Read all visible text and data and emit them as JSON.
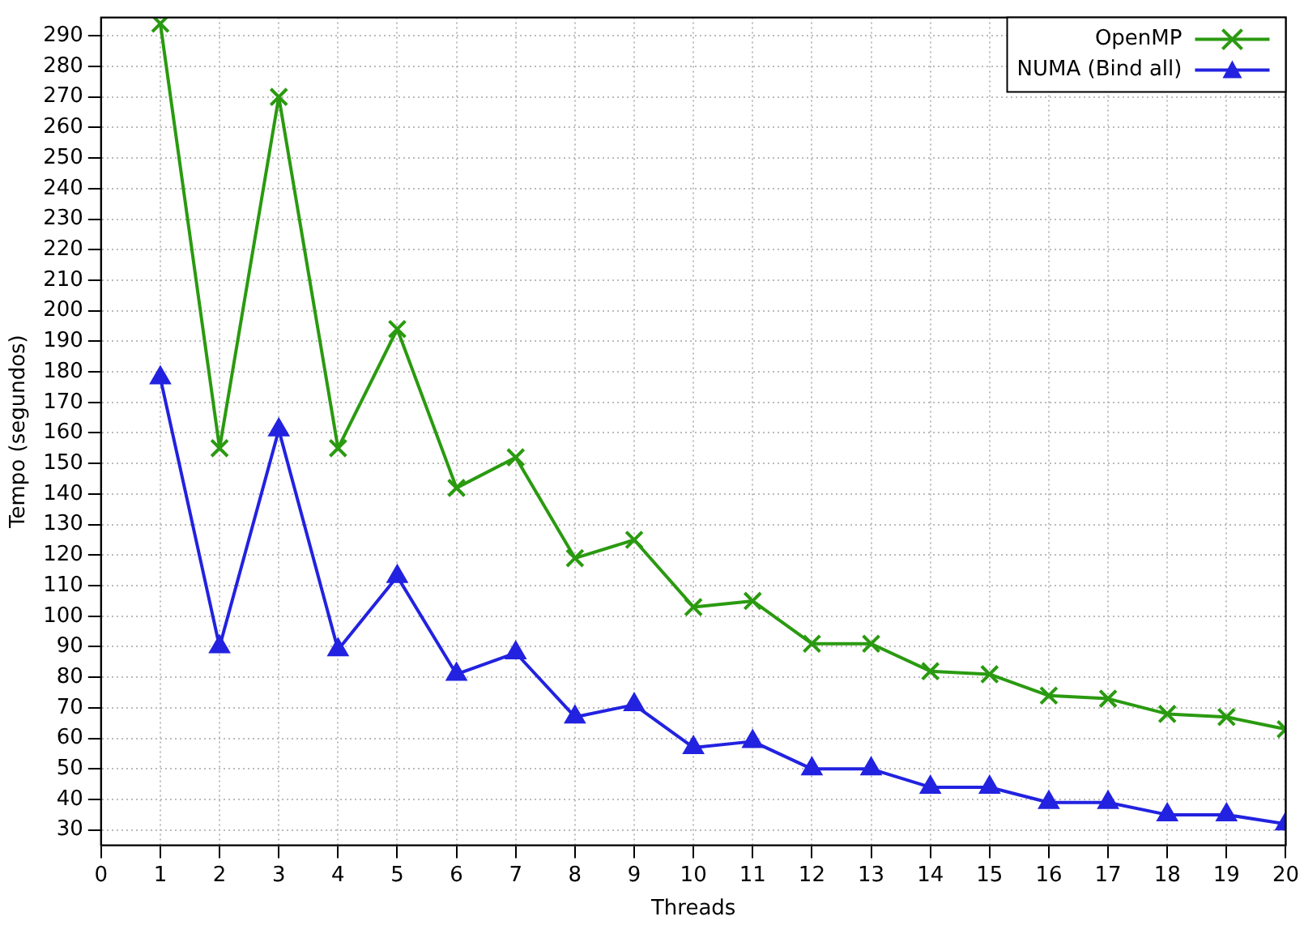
{
  "chart_data": {
    "type": "line",
    "xlabel": "Threads",
    "ylabel": "Tempo (segundos)",
    "x": [
      1,
      2,
      3,
      4,
      5,
      6,
      7,
      8,
      9,
      10,
      11,
      12,
      13,
      14,
      15,
      16,
      17,
      18,
      19,
      20
    ],
    "series": [
      {
        "name": "OpenMP",
        "color": "#2a9a10",
        "marker": "cross",
        "values": [
          294,
          155,
          270,
          155,
          194,
          142,
          152,
          119,
          125,
          103,
          105,
          91,
          91,
          82,
          81,
          74,
          73,
          68,
          67,
          63
        ]
      },
      {
        "name": "NUMA (Bind all)",
        "color": "#2222e0",
        "marker": "triangle",
        "values": [
          178,
          90,
          161,
          89,
          113,
          81,
          88,
          67,
          71,
          57,
          59,
          50,
          50,
          44,
          44,
          39,
          39,
          35,
          35,
          32
        ]
      }
    ],
    "xlim": [
      0,
      20
    ],
    "xticks": [
      0,
      1,
      2,
      3,
      4,
      5,
      6,
      7,
      8,
      9,
      10,
      11,
      12,
      13,
      14,
      15,
      16,
      17,
      18,
      19,
      20
    ],
    "ylim": [
      25,
      296
    ],
    "yticks": [
      30,
      40,
      50,
      60,
      70,
      80,
      90,
      100,
      110,
      120,
      130,
      140,
      150,
      160,
      170,
      180,
      190,
      200,
      210,
      220,
      230,
      240,
      250,
      260,
      270,
      280,
      290
    ],
    "grid": true,
    "legend": "top right",
    "line_style": "solid"
  }
}
